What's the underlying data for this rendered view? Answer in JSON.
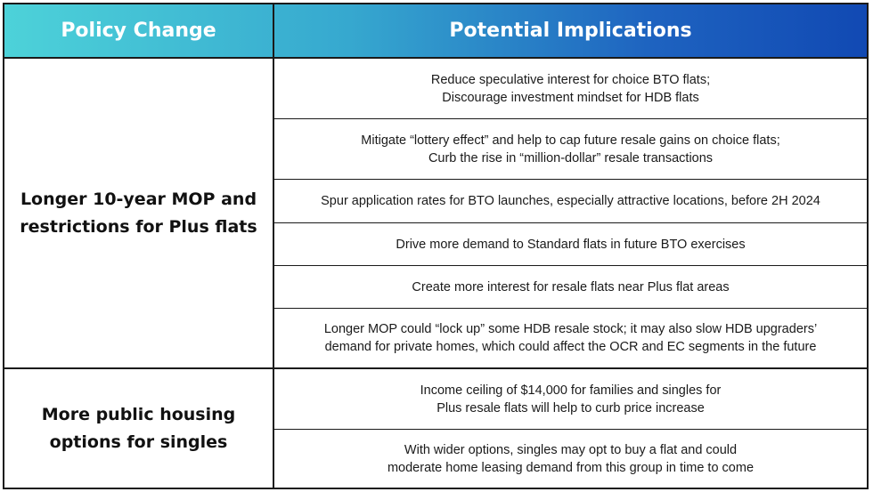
{
  "header": {
    "col1": "Policy Change",
    "col2": "Potential Implications"
  },
  "groups": [
    {
      "policy": "Longer 10-year MOP and\nrestrictions for Plus flats",
      "implications": [
        "Reduce speculative interest for choice BTO flats;\nDiscourage investment mindset for HDB flats",
        "Mitigate “lottery effect” and help to cap future resale gains on choice flats;\nCurb the rise in “million-dollar” resale transactions",
        "Spur application rates for BTO launches, especially attractive locations, before 2H 2024",
        "Drive more demand to Standard flats in future BTO exercises",
        "Create more interest for resale flats near Plus flat areas",
        "Longer MOP could “lock up” some HDB resale stock; it may also slow HDB upgraders’\ndemand for private homes, which could affect the OCR and EC segments in the future"
      ]
    },
    {
      "policy": "More public housing\noptions for singles",
      "implications": [
        "Income ceiling of $14,000 for families and singles for\nPlus resale flats will help to curb price increase",
        "With wider options, singles may opt to buy a flat and could\nmoderate home leasing demand from this group in time to come"
      ]
    }
  ]
}
